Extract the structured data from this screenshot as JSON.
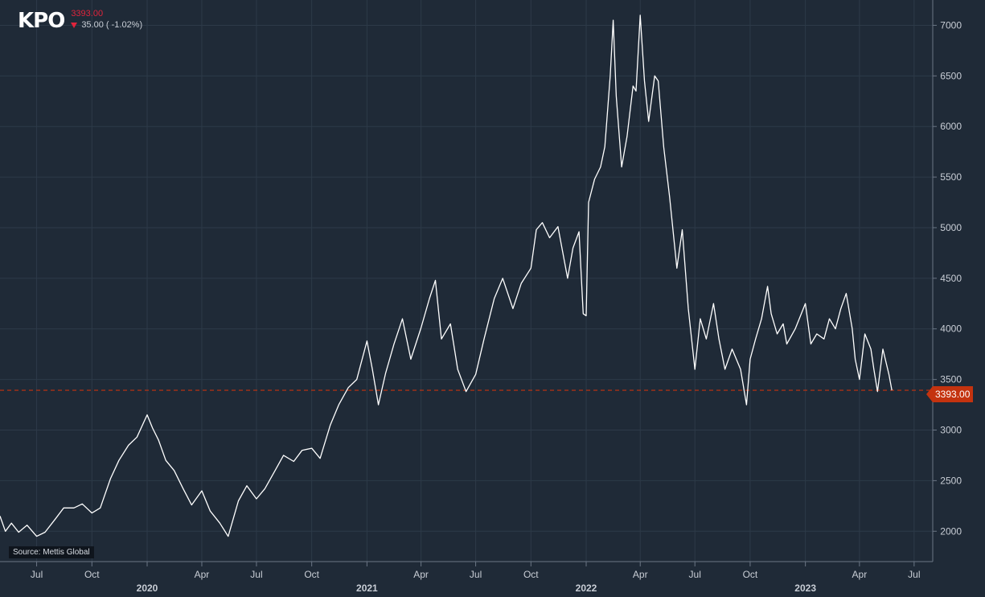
{
  "header": {
    "ticker": "KPO",
    "last_price": "3393.00",
    "change_text": "35.00 ( -1.02%)",
    "change_direction": "down"
  },
  "source_label": "Source: Mettis Global",
  "last_price_tag": "3393.00",
  "colors": {
    "background": "#1f2a37",
    "line": "#ffffff",
    "grid": "#2d3a48",
    "reference_line": "#c4330f",
    "negative": "#e0243c",
    "axis_text": "#c9ced6"
  },
  "chart_data": {
    "type": "line",
    "title": "",
    "xlabel": "",
    "ylabel": "",
    "x_range": [
      "2019-05-01",
      "2023-08-01"
    ],
    "ylim": [
      1700,
      7250
    ],
    "y_ticks": [
      2000,
      2500,
      3000,
      3500,
      4000,
      4500,
      5000,
      5500,
      6000,
      6500,
      7000
    ],
    "x_ticks": [
      {
        "date": "2019-07-01",
        "label": "Jul"
      },
      {
        "date": "2019-10-01",
        "label": "Oct"
      },
      {
        "date": "2020-01-01",
        "label": "2020"
      },
      {
        "date": "2020-04-01",
        "label": "Apr"
      },
      {
        "date": "2020-07-01",
        "label": "Jul"
      },
      {
        "date": "2020-10-01",
        "label": "Oct"
      },
      {
        "date": "2021-01-01",
        "label": "2021"
      },
      {
        "date": "2021-04-01",
        "label": "Apr"
      },
      {
        "date": "2021-07-01",
        "label": "Jul"
      },
      {
        "date": "2021-10-01",
        "label": "Oct"
      },
      {
        "date": "2022-01-01",
        "label": "2022"
      },
      {
        "date": "2022-04-01",
        "label": "Apr"
      },
      {
        "date": "2022-07-01",
        "label": "Jul"
      },
      {
        "date": "2022-10-01",
        "label": "Oct"
      },
      {
        "date": "2023-01-01",
        "label": "2023"
      },
      {
        "date": "2023-04-01",
        "label": "Apr"
      },
      {
        "date": "2023-07-01",
        "label": "Jul"
      }
    ],
    "grid": true,
    "reference_line": {
      "y": 3393,
      "style": "dashed"
    },
    "series": [
      {
        "points": [
          [
            "2019-05-01",
            2150
          ],
          [
            "2019-05-10",
            2000
          ],
          [
            "2019-05-20",
            2080
          ],
          [
            "2019-06-01",
            1990
          ],
          [
            "2019-06-15",
            2060
          ],
          [
            "2019-07-01",
            1950
          ],
          [
            "2019-07-15",
            1990
          ],
          [
            "2019-08-01",
            2120
          ],
          [
            "2019-08-15",
            2230
          ],
          [
            "2019-09-01",
            2230
          ],
          [
            "2019-09-15",
            2270
          ],
          [
            "2019-10-01",
            2180
          ],
          [
            "2019-10-15",
            2230
          ],
          [
            "2019-11-01",
            2520
          ],
          [
            "2019-11-15",
            2700
          ],
          [
            "2019-12-01",
            2850
          ],
          [
            "2019-12-15",
            2930
          ],
          [
            "2020-01-01",
            3150
          ],
          [
            "2020-01-10",
            3020
          ],
          [
            "2020-01-20",
            2900
          ],
          [
            "2020-02-01",
            2700
          ],
          [
            "2020-02-15",
            2600
          ],
          [
            "2020-03-01",
            2420
          ],
          [
            "2020-03-15",
            2260
          ],
          [
            "2020-04-01",
            2400
          ],
          [
            "2020-04-15",
            2200
          ],
          [
            "2020-05-01",
            2080
          ],
          [
            "2020-05-15",
            1950
          ],
          [
            "2020-06-01",
            2300
          ],
          [
            "2020-06-15",
            2450
          ],
          [
            "2020-07-01",
            2320
          ],
          [
            "2020-07-15",
            2420
          ],
          [
            "2020-08-01",
            2600
          ],
          [
            "2020-08-15",
            2750
          ],
          [
            "2020-09-01",
            2690
          ],
          [
            "2020-09-15",
            2800
          ],
          [
            "2020-10-01",
            2820
          ],
          [
            "2020-10-15",
            2720
          ],
          [
            "2020-11-01",
            3050
          ],
          [
            "2020-11-15",
            3250
          ],
          [
            "2020-12-01",
            3420
          ],
          [
            "2020-12-15",
            3500
          ],
          [
            "2021-01-01",
            3880
          ],
          [
            "2021-01-10",
            3600
          ],
          [
            "2021-01-20",
            3250
          ],
          [
            "2021-02-01",
            3560
          ],
          [
            "2021-02-15",
            3850
          ],
          [
            "2021-03-01",
            4100
          ],
          [
            "2021-03-15",
            3700
          ],
          [
            "2021-04-01",
            4010
          ],
          [
            "2021-04-15",
            4300
          ],
          [
            "2021-04-25",
            4480
          ],
          [
            "2021-05-05",
            3900
          ],
          [
            "2021-05-20",
            4050
          ],
          [
            "2021-06-01",
            3600
          ],
          [
            "2021-06-15",
            3380
          ],
          [
            "2021-07-01",
            3550
          ],
          [
            "2021-07-15",
            3900
          ],
          [
            "2021-08-01",
            4300
          ],
          [
            "2021-08-15",
            4500
          ],
          [
            "2021-09-01",
            4200
          ],
          [
            "2021-09-15",
            4450
          ],
          [
            "2021-10-01",
            4600
          ],
          [
            "2021-10-10",
            4980
          ],
          [
            "2021-10-20",
            5050
          ],
          [
            "2021-11-01",
            4900
          ],
          [
            "2021-11-15",
            5010
          ],
          [
            "2021-12-01",
            4500
          ],
          [
            "2021-12-10",
            4800
          ],
          [
            "2021-12-20",
            4960
          ],
          [
            "2021-12-27",
            4150
          ],
          [
            "2022-01-01",
            4130
          ],
          [
            "2022-01-05",
            5250
          ],
          [
            "2022-01-15",
            5480
          ],
          [
            "2022-01-25",
            5600
          ],
          [
            "2022-02-01",
            5800
          ],
          [
            "2022-02-10",
            6500
          ],
          [
            "2022-02-15",
            7050
          ],
          [
            "2022-02-20",
            6300
          ],
          [
            "2022-03-01",
            5600
          ],
          [
            "2022-03-10",
            5900
          ],
          [
            "2022-03-20",
            6400
          ],
          [
            "2022-03-25",
            6350
          ],
          [
            "2022-04-01",
            7100
          ],
          [
            "2022-04-08",
            6450
          ],
          [
            "2022-04-15",
            6050
          ],
          [
            "2022-04-25",
            6500
          ],
          [
            "2022-05-01",
            6450
          ],
          [
            "2022-05-10",
            5800
          ],
          [
            "2022-05-20",
            5300
          ],
          [
            "2022-06-01",
            4600
          ],
          [
            "2022-06-10",
            4980
          ],
          [
            "2022-06-20",
            4200
          ],
          [
            "2022-07-01",
            3600
          ],
          [
            "2022-07-10",
            4100
          ],
          [
            "2022-07-20",
            3900
          ],
          [
            "2022-08-01",
            4250
          ],
          [
            "2022-08-10",
            3900
          ],
          [
            "2022-08-20",
            3600
          ],
          [
            "2022-09-01",
            3800
          ],
          [
            "2022-09-15",
            3600
          ],
          [
            "2022-09-25",
            3250
          ],
          [
            "2022-10-01",
            3700
          ],
          [
            "2022-10-10",
            3900
          ],
          [
            "2022-10-20",
            4100
          ],
          [
            "2022-10-30",
            4420
          ],
          [
            "2022-11-05",
            4150
          ],
          [
            "2022-11-15",
            3950
          ],
          [
            "2022-11-25",
            4050
          ],
          [
            "2022-12-01",
            3850
          ],
          [
            "2022-12-15",
            4000
          ],
          [
            "2023-01-01",
            4250
          ],
          [
            "2023-01-10",
            3850
          ],
          [
            "2023-01-20",
            3950
          ],
          [
            "2023-02-01",
            3900
          ],
          [
            "2023-02-10",
            4100
          ],
          [
            "2023-02-20",
            4000
          ],
          [
            "2023-03-01",
            4200
          ],
          [
            "2023-03-10",
            4350
          ],
          [
            "2023-03-20",
            4000
          ],
          [
            "2023-03-25",
            3700
          ],
          [
            "2023-04-01",
            3500
          ],
          [
            "2023-04-10",
            3950
          ],
          [
            "2023-04-20",
            3800
          ],
          [
            "2023-04-25",
            3600
          ],
          [
            "2023-05-01",
            3380
          ],
          [
            "2023-05-10",
            3800
          ],
          [
            "2023-05-20",
            3550
          ],
          [
            "2023-05-25",
            3393
          ]
        ]
      }
    ]
  }
}
